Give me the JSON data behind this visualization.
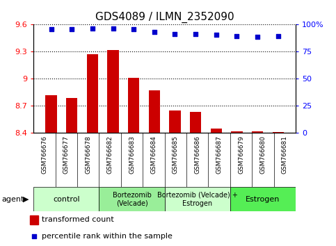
{
  "title": "GDS4089 / ILMN_2352090",
  "samples": [
    "GSM766676",
    "GSM766677",
    "GSM766678",
    "GSM766682",
    "GSM766683",
    "GSM766684",
    "GSM766685",
    "GSM766686",
    "GSM766687",
    "GSM766679",
    "GSM766680",
    "GSM766681"
  ],
  "bar_values": [
    8.82,
    8.79,
    9.27,
    9.32,
    9.01,
    8.87,
    8.65,
    8.63,
    8.45,
    8.42,
    8.42,
    8.41
  ],
  "percentile_values": [
    95.5,
    95.5,
    96.5,
    96.5,
    95.5,
    93.5,
    91.5,
    91.5,
    90.5,
    89.5,
    88.5,
    89.5
  ],
  "bar_color": "#cc0000",
  "dot_color": "#0000cc",
  "ylim_left": [
    8.4,
    9.6
  ],
  "ylim_right": [
    0,
    100
  ],
  "yticks_left": [
    8.4,
    8.7,
    9.0,
    9.3,
    9.6
  ],
  "yticks_right": [
    0,
    25,
    50,
    75,
    100
  ],
  "ytick_labels_left": [
    "8.4",
    "8.7",
    "9",
    "9.3",
    "9.6"
  ],
  "ytick_labels_right": [
    "0",
    "25",
    "50",
    "75",
    "100%"
  ],
  "groups": [
    {
      "label": "control",
      "start": 0,
      "end": 3,
      "color": "#ccffcc"
    },
    {
      "label": "Bortezomib\n(Velcade)",
      "start": 3,
      "end": 6,
      "color": "#99ee99"
    },
    {
      "label": "Bortezomib (Velcade) +\nEstrogen",
      "start": 6,
      "end": 9,
      "color": "#ccffcc"
    },
    {
      "label": "Estrogen",
      "start": 9,
      "end": 12,
      "color": "#55ee55"
    }
  ],
  "agent_label": "agent",
  "legend_bar_label": "transformed count",
  "legend_dot_label": "percentile rank within the sample",
  "bar_width": 0.55,
  "plot_bg": "#ffffff",
  "xtick_bg": "#bbbbbb"
}
